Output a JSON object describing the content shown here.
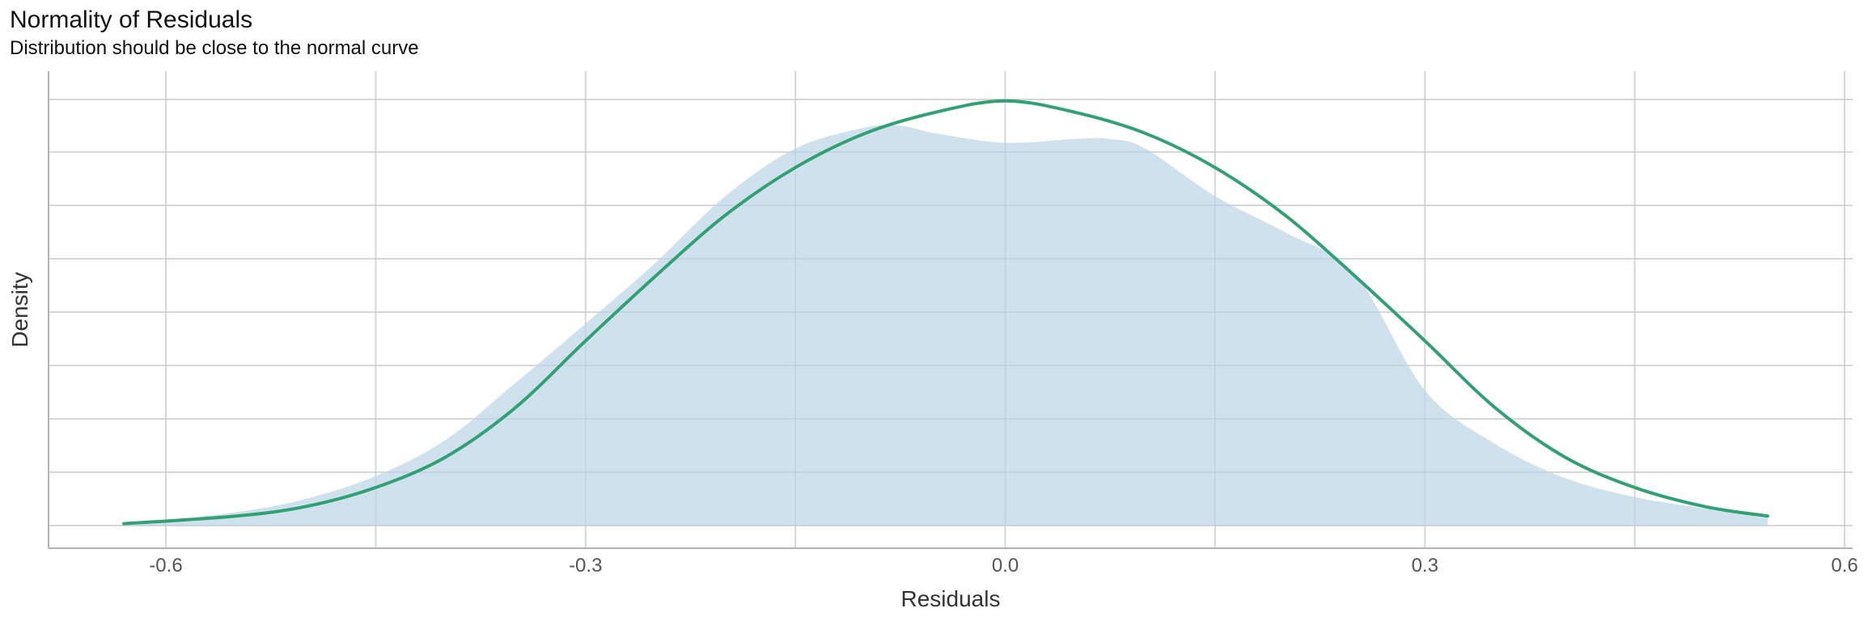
{
  "chart_data": {
    "type": "area",
    "title": "Normality of Residuals",
    "subtitle": "Distribution should be close to the normal curve",
    "xlabel": "Residuals",
    "ylabel": "Density",
    "xlim": [
      -0.7,
      0.6
    ],
    "ylim": [
      0,
      2.3
    ],
    "x_ticks": [
      -0.6,
      -0.3,
      0.0,
      0.3,
      0.6
    ],
    "x_tick_labels": [
      "-0.6",
      "-0.3",
      "0.0",
      "0.3",
      "0.6"
    ],
    "grid": true,
    "series": [
      {
        "kind": "density-area",
        "color": "#cddfed",
        "x": [
          -0.625,
          -0.55,
          -0.5,
          -0.45,
          -0.4,
          -0.35,
          -0.3,
          -0.25,
          -0.2,
          -0.15,
          -0.1,
          -0.075,
          -0.05,
          0.0,
          0.05,
          0.075,
          0.1,
          0.15,
          0.2,
          0.25,
          0.3,
          0.35,
          0.4,
          0.45,
          0.5,
          0.545
        ],
        "y": [
          0.01,
          0.07,
          0.14,
          0.26,
          0.45,
          0.75,
          1.06,
          1.38,
          1.73,
          1.98,
          2.09,
          2.1,
          2.06,
          2.01,
          2.03,
          2.03,
          1.98,
          1.73,
          1.54,
          1.32,
          0.71,
          0.43,
          0.25,
          0.15,
          0.09,
          0.04
        ]
      },
      {
        "kind": "normal-curve",
        "color": "#31a074",
        "x": [
          -0.63,
          -0.55,
          -0.5,
          -0.45,
          -0.4,
          -0.35,
          -0.3,
          -0.25,
          -0.2,
          -0.15,
          -0.1,
          -0.05,
          0.0,
          0.05,
          0.1,
          0.15,
          0.2,
          0.25,
          0.3,
          0.35,
          0.4,
          0.45,
          0.5,
          0.545
        ],
        "y": [
          0.01,
          0.05,
          0.1,
          0.2,
          0.36,
          0.62,
          0.97,
          1.31,
          1.63,
          1.88,
          2.06,
          2.17,
          2.23,
          2.17,
          2.06,
          1.88,
          1.63,
          1.31,
          0.97,
          0.62,
          0.36,
          0.2,
          0.1,
          0.05
        ]
      }
    ]
  }
}
